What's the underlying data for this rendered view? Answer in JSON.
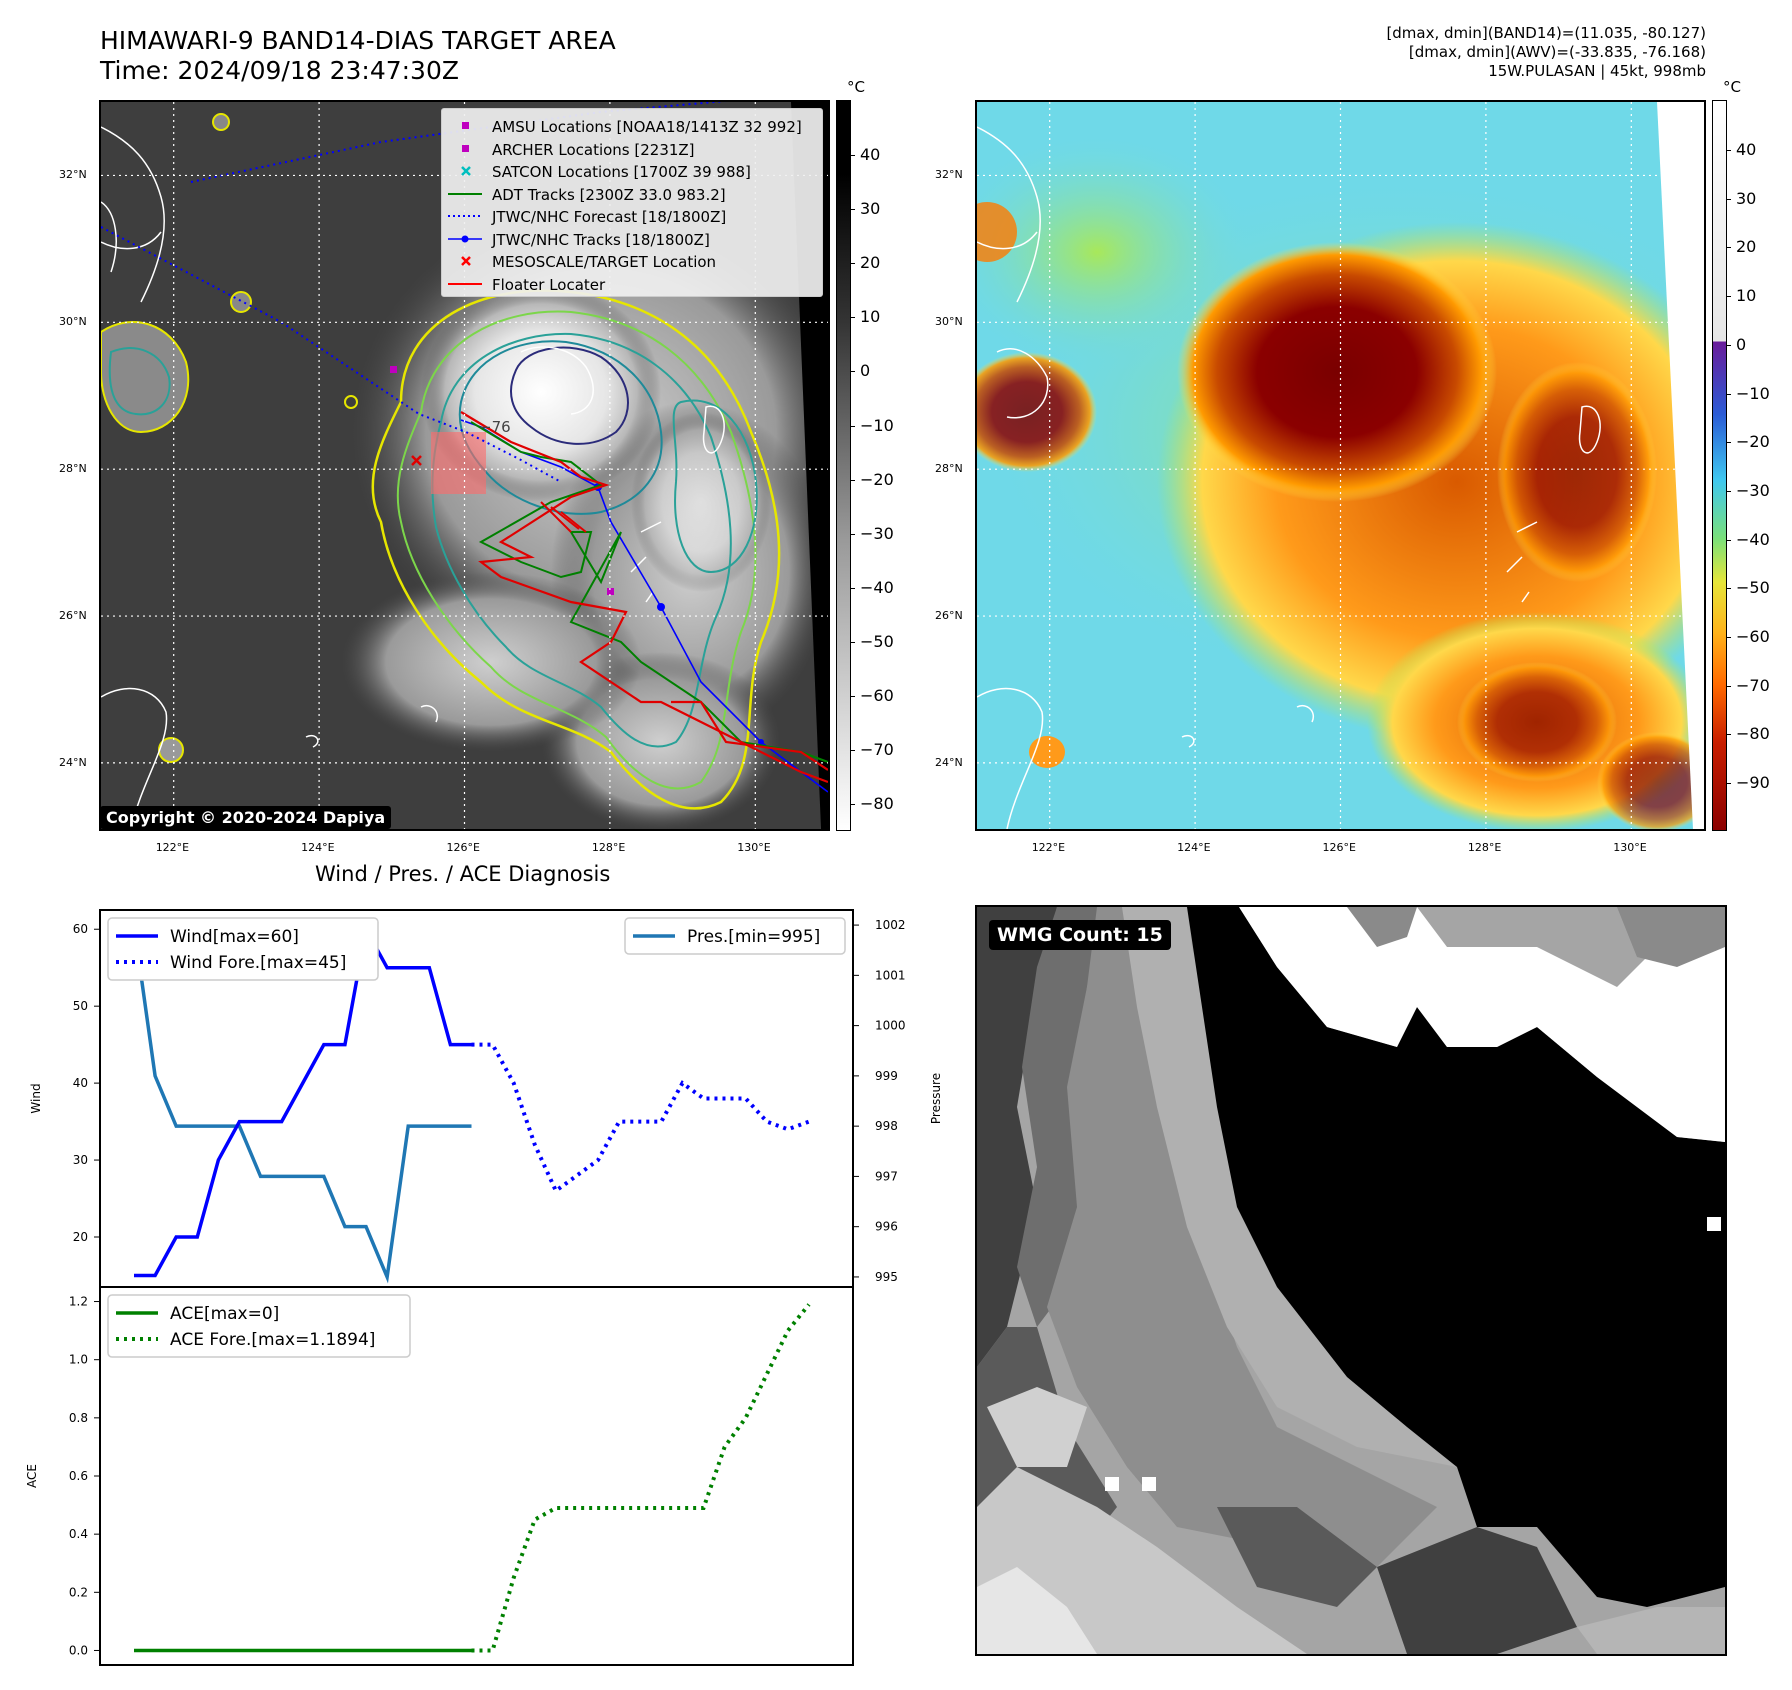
{
  "header": {
    "title_line1": "HIMAWARI-9 BAND14-DIAS TARGET AREA",
    "title_line2": "Time: 2024/09/18 23:47:30Z",
    "info_line1": "[dmax, dmin](BAND14)=(11.035, -80.127)",
    "info_line2": "[dmax, dmin](AWV)=(-33.835, -76.168)",
    "info_line3": "15W.PULASAN | 45kt, 998mb"
  },
  "map": {
    "lat_labels": [
      "32°N",
      "30°N",
      "28°N",
      "26°N",
      "24°N"
    ],
    "lon_labels": [
      "122°E",
      "124°E",
      "126°E",
      "128°E",
      "130°E"
    ],
    "lat_values": [
      32,
      30,
      28,
      26,
      24
    ],
    "lon_values": [
      122,
      124,
      126,
      128,
      130
    ],
    "lat_range": [
      23.1,
      33.0
    ],
    "lon_range": [
      121.0,
      131.0
    ],
    "contour_label": "−76",
    "copyright": "Copyright © 2020-2024 Dapiya",
    "legend": [
      {
        "label": "AMSU Locations [NOAA18/1413Z 32 992]",
        "marker": "square",
        "color": "#bf00bf"
      },
      {
        "label": "ARCHER Locations [2231Z]",
        "marker": "square",
        "color": "#bf00bf"
      },
      {
        "label": "SATCON Locations [1700Z 39 988]",
        "marker": "x",
        "color": "#00bfbf"
      },
      {
        "label": "ADT Tracks [2300Z 33.0 983.2]",
        "marker": "line",
        "color": "#008000"
      },
      {
        "label": "JTWC/NHC Forecast [18/1800Z]",
        "marker": "dotted",
        "color": "#0000ff"
      },
      {
        "label": "JTWC/NHC Tracks [18/1800Z]",
        "marker": "dotline",
        "color": "#0000ff"
      },
      {
        "label": "MESOSCALE/TARGET Location",
        "marker": "x",
        "color": "#ff0000"
      },
      {
        "label": "Floater Locater",
        "marker": "line",
        "color": "#ff0000"
      }
    ]
  },
  "colorbar_gray": {
    "unit": "°C",
    "ticks": [
      "40",
      "30",
      "20",
      "10",
      "0",
      "−10",
      "−20",
      "−30",
      "−40",
      "−50",
      "−60",
      "−70",
      "−80"
    ]
  },
  "colorbar_color": {
    "unit": "°C",
    "ticks": [
      "40",
      "30",
      "20",
      "10",
      "0",
      "−10",
      "−20",
      "−30",
      "−40",
      "−50",
      "−60",
      "−70",
      "−80",
      "−90"
    ]
  },
  "diagnosis": {
    "title": "Wind / Pres. / ACE Diagnosis"
  },
  "wmg": {
    "label": "WMG Count: 15"
  },
  "chart_data": [
    {
      "type": "line",
      "title": "Wind / Pres. / ACE Diagnosis",
      "ylabel": "Wind",
      "y2label": "Pressure",
      "ylim": [
        13.5,
        62.5
      ],
      "y2lim": [
        994.8,
        1002.3
      ],
      "yticks": [
        20,
        30,
        40,
        50,
        60
      ],
      "y2ticks": [
        995,
        996,
        997,
        998,
        999,
        1000,
        1001,
        1002
      ],
      "series": [
        {
          "name": "Wind[max=60]",
          "color": "#0000ff",
          "style": "solid",
          "axis": "left",
          "x": [
            0,
            1,
            2,
            3,
            4,
            5,
            6,
            7,
            8,
            9,
            10,
            11,
            12,
            13,
            14,
            15,
            16
          ],
          "values": [
            15,
            15,
            20,
            20,
            30,
            35,
            35,
            35,
            40,
            45,
            45,
            60,
            55,
            55,
            55,
            45,
            45
          ]
        },
        {
          "name": "Wind Fore.[max=45]",
          "color": "#0000ff",
          "style": "dotted",
          "axis": "left",
          "x": [
            16,
            17,
            18,
            19,
            20,
            21,
            22,
            23,
            24,
            25,
            26,
            27,
            28,
            29,
            30,
            31,
            32
          ],
          "values": [
            45,
            45,
            40,
            32,
            26,
            28,
            30,
            35,
            35,
            35,
            40,
            38,
            38,
            38,
            35,
            34,
            35
          ]
        },
        {
          "name": "Pres.[min=995]",
          "color": "#1f77b4",
          "style": "solid",
          "axis": "right",
          "x": [
            0,
            1,
            2,
            3,
            4,
            5,
            6,
            7,
            8,
            9,
            10,
            11,
            12,
            13,
            14,
            15,
            16
          ],
          "values": [
            1002,
            999,
            998,
            998,
            998,
            998,
            997,
            997,
            997,
            997,
            996,
            996,
            995,
            998,
            998,
            998,
            998
          ]
        }
      ]
    },
    {
      "type": "line",
      "ylabel": "ACE",
      "ylim": [
        -0.05,
        1.25
      ],
      "yticks": [
        0.0,
        0.2,
        0.4,
        0.6,
        0.8,
        1.0,
        1.2
      ],
      "ytick_labels": [
        "0.0",
        "0.2",
        "0.4",
        "0.6",
        "0.8",
        "1.0",
        "1.2"
      ],
      "series": [
        {
          "name": "ACE[max=0]",
          "color": "#008000",
          "style": "solid",
          "x": [
            0,
            16
          ],
          "values": [
            0,
            0
          ]
        },
        {
          "name": "ACE Fore.[max=1.1894]",
          "color": "#008000",
          "style": "dotted",
          "x": [
            16,
            17,
            18,
            19,
            20,
            21,
            22,
            23,
            24,
            25,
            26,
            27,
            28,
            29,
            30,
            31,
            32
          ],
          "values": [
            0,
            0,
            0.25,
            0.45,
            0.49,
            0.49,
            0.49,
            0.49,
            0.49,
            0.49,
            0.49,
            0.49,
            0.7,
            0.8,
            0.95,
            1.1,
            1.19
          ]
        }
      ]
    }
  ]
}
